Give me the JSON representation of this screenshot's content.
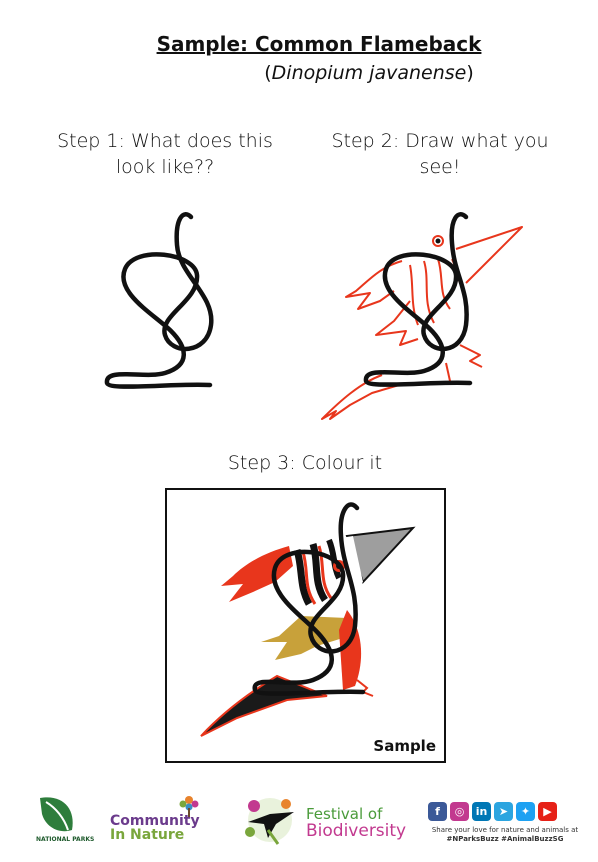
{
  "header": {
    "title": "Sample: Common Flameback",
    "subtitle_open": "(",
    "subtitle_species": "Dinopium javanense",
    "subtitle_close": ")"
  },
  "steps": {
    "step1_label": "Step 1: What does this look like??",
    "step2_label": "Step 2: Draw what you see!",
    "step3_label": "Step 3: Colour it"
  },
  "sample": {
    "label": "Sample"
  },
  "colors": {
    "outline": "#111111",
    "flame_red": "#e8361c",
    "gold": "#c8a13a",
    "beak_grey": "#9e9e9e",
    "tail_dark": "#1a1a1a"
  },
  "footer": {
    "np_logo_text": "NATIONAL PARKS",
    "cin_word1": "Community",
    "cin_word2": "In Nature",
    "fob_line1": "Festival of",
    "fob_line2": "Biodiversity",
    "social_icons": [
      "facebook-icon",
      "instagram-icon",
      "linkedin-icon",
      "telegram-icon",
      "twitter-icon",
      "youtube-icon"
    ],
    "share_line": "Share your love for nature and animals at",
    "hashtags": "#NParksBuzz #AnimalBuzzSG"
  }
}
